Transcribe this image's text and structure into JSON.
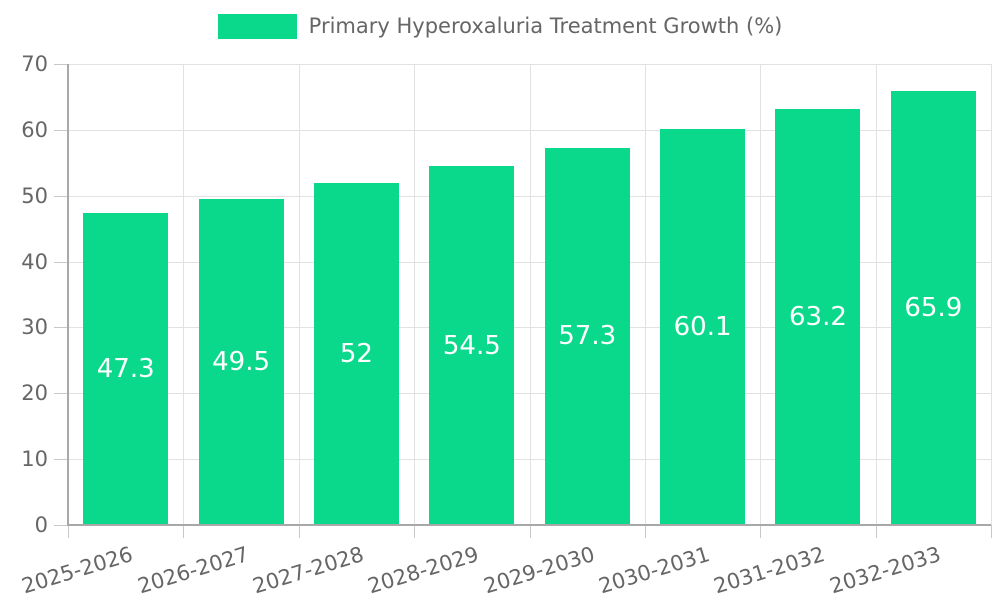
{
  "chart_data": {
    "type": "bar",
    "title": "",
    "categories": [
      "2025-2026",
      "2026-2027",
      "2027-2028",
      "2028-2029",
      "2029-2030",
      "2030-2031",
      "2031-2032",
      "2032-2033"
    ],
    "series": [
      {
        "name": "Primary Hyperoxaluria Treatment Growth (%)",
        "values": [
          47.3,
          49.5,
          52,
          54.5,
          57.3,
          60.1,
          63.2,
          65.9
        ]
      }
    ],
    "value_labels": [
      "47.3",
      "49.5",
      "52",
      "54.5",
      "57.3",
      "60.1",
      "63.2",
      "65.9"
    ],
    "xlabel": "",
    "ylabel": "",
    "ylim": [
      0,
      70
    ],
    "yticks": [
      0,
      10,
      20,
      30,
      40,
      50,
      60,
      70
    ],
    "grid": true,
    "legend_position": "top",
    "colors": {
      "bar": "#0ad98c",
      "grid": "#e2e2e2",
      "axis": "#a8a8a8",
      "tick_mark": "#c9c9c9",
      "tick_label": "#666666",
      "value_label": "#ffffff",
      "legend_label": "#666666",
      "background": "#ffffff"
    }
  }
}
